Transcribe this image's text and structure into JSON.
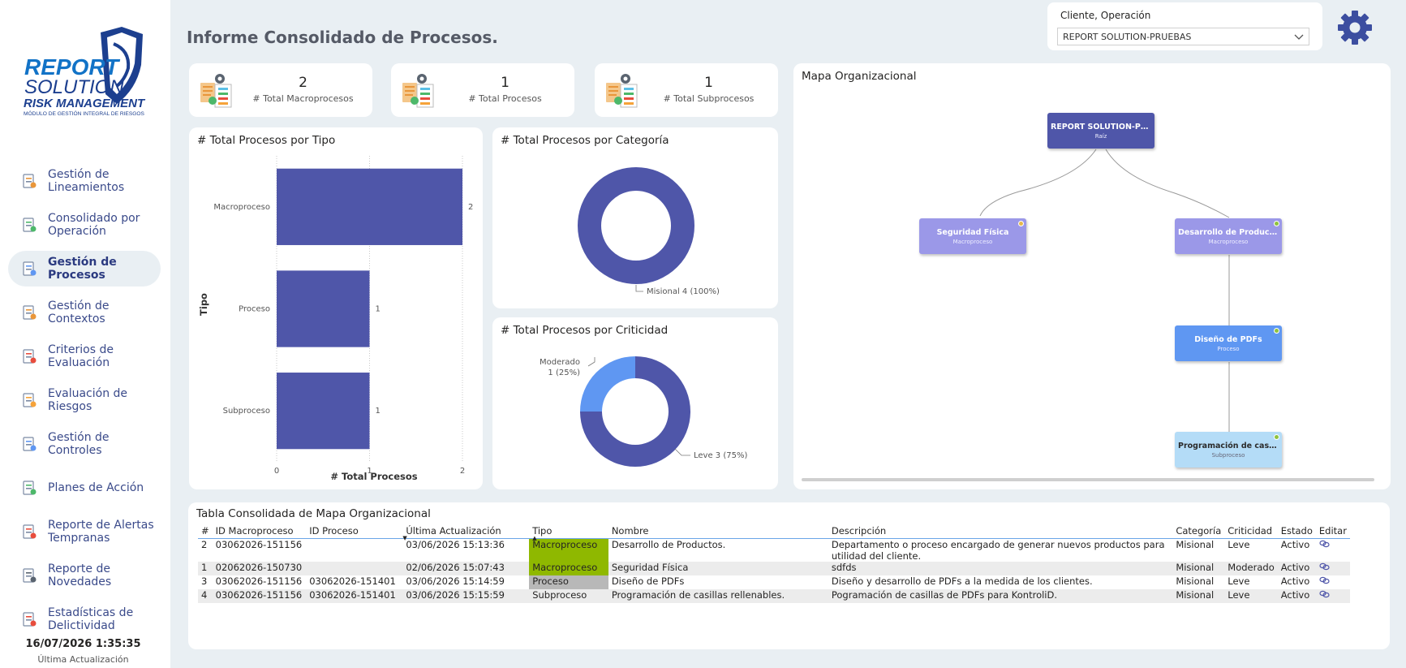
{
  "logo": {
    "line1": "REPORT",
    "line2": "SOLUTION",
    "line3": "RISK MANAGEMENT",
    "line4": "MÓDULO DE GESTIÓN INTEGRAL DE RIESGOS"
  },
  "sidebar": {
    "items": [
      {
        "label": "Gestión de Lineamientos",
        "icon": "document-list-icon"
      },
      {
        "label": "Consolidado por Operación",
        "icon": "home-icon"
      },
      {
        "label": "Gestión de Procesos",
        "icon": "process-icon",
        "active": true
      },
      {
        "label": "Gestión de Contextos",
        "icon": "context-icon"
      },
      {
        "label": "Criterios de Evaluación",
        "icon": "checklist-icon"
      },
      {
        "label": "Evaluación de Riesgos",
        "icon": "risk-icon"
      },
      {
        "label": "Gestión de Controles",
        "icon": "controls-icon"
      },
      {
        "label": "Planes de Acción",
        "icon": "action-plan-icon"
      },
      {
        "label": "Reporte de Alertas Tempranas",
        "icon": "alert-chart-icon"
      },
      {
        "label": "Reporte de Novedades",
        "icon": "news-icon"
      },
      {
        "label": "Estadísticas de Delictividad",
        "icon": "fire-alert-icon"
      }
    ],
    "last_update_value": "16/07/2026 1:35:35",
    "last_update_label": "Última Actualización"
  },
  "header": {
    "title": "Informe Consolidado de Procesos.",
    "client_label": "Cliente, Operación",
    "client_value": "REPORT SOLUTION-PRUEBAS"
  },
  "kpis": [
    {
      "value": "2",
      "label": "# Total Macroprocesos"
    },
    {
      "value": "1",
      "label": "# Total Procesos"
    },
    {
      "value": "1",
      "label": "# Total Subprocesos"
    }
  ],
  "charts": {
    "tipo_title": "# Total Procesos por Tipo",
    "categoria_title": "# Total Procesos por Categoría",
    "criticidad_title": "# Total Procesos por Criticidad"
  },
  "chart_data": [
    {
      "type": "bar",
      "orientation": "horizontal",
      "title": "# Total Procesos por Tipo",
      "categories": [
        "Macroproceso",
        "Proceso",
        "Subproceso"
      ],
      "values": [
        2,
        1,
        1
      ],
      "xlabel": "# Total Procesos",
      "ylabel": "Tipo",
      "xlim": [
        0,
        2
      ],
      "xticks": [
        "0",
        "1",
        "2"
      ],
      "color": "#4f56a9",
      "grid": true
    },
    {
      "type": "pie",
      "donut": true,
      "title": "# Total Procesos por Categoría",
      "slices": [
        {
          "label": "Misional",
          "value": 4,
          "pct": "100%",
          "color": "#4f56a9"
        }
      ],
      "data_labels": [
        "Misional 4 (100%)"
      ]
    },
    {
      "type": "pie",
      "donut": true,
      "title": "# Total Procesos por Criticidad",
      "slices": [
        {
          "label": "Leve",
          "value": 3,
          "pct": "75%",
          "color": "#4f56a9"
        },
        {
          "label": "Moderado",
          "value": 1,
          "pct": "25%",
          "color": "#5f97f2"
        }
      ],
      "data_labels": [
        "Leve 3 (75%)",
        "Moderado",
        "1 (25%)"
      ]
    }
  ],
  "orgmap": {
    "title": "Mapa Organizacional",
    "nodes": [
      {
        "title": "REPORT SOLUTION-PRUE...",
        "sub": "Raíz",
        "color": "#4f56a9",
        "dot": ""
      },
      {
        "title": "Seguridad Física",
        "sub": "Macroproceso",
        "color": "#9b98e8",
        "dot": "#e6b84a"
      },
      {
        "title": "Desarrollo de Productos.",
        "sub": "Macroproceso",
        "color": "#9b98e8",
        "dot": "#8fc23e"
      },
      {
        "title": "Diseño de PDFs",
        "sub": "Proceso",
        "color": "#5f97f2",
        "dot": "#8fc23e"
      },
      {
        "title": "Programación de casillas r...",
        "sub": "Subproceso",
        "color": "#b4dcf7",
        "dot": "#8fc23e",
        "dark": true
      }
    ]
  },
  "table": {
    "title": "Tabla Consolidada de Mapa Organizacional",
    "columns": [
      "#",
      "ID Macroproceso",
      "ID Proceso",
      "Última Actualización",
      "Tipo",
      "Nombre",
      "Descripción",
      "Categoría",
      "Criticidad",
      "Estado",
      "Editar"
    ],
    "rows": [
      [
        "2",
        "03062026-151156",
        "",
        "03/06/2026 15:13:36",
        "Macroproceso",
        "Desarrollo de Productos.",
        "Departamento o proceso encargado de generar nuevos productos para utilidad del cliente.",
        "Misional",
        "Leve",
        "Activo"
      ],
      [
        "1",
        "02062026-150730",
        "",
        "02/06/2026 15:07:43",
        "Macroproceso",
        "Seguridad Física",
        "sdfds",
        "Misional",
        "Moderado",
        "Activo"
      ],
      [
        "3",
        "03062026-151156",
        "03062026-151401",
        "03/06/2026 15:14:59",
        "Proceso",
        "Diseño de PDFs",
        "Diseño y desarrollo de PDFs a la medida de los clientes.",
        "Misional",
        "Leve",
        "Activo"
      ],
      [
        "4",
        "03062026-151156",
        "03062026-151401",
        "03/06/2026 15:15:59",
        "Subproceso",
        "Programación de casillas rellenables.",
        "Pogramación de casillas de PDFs para KontroliD.",
        "Misional",
        "Leve",
        "Activo"
      ]
    ]
  }
}
